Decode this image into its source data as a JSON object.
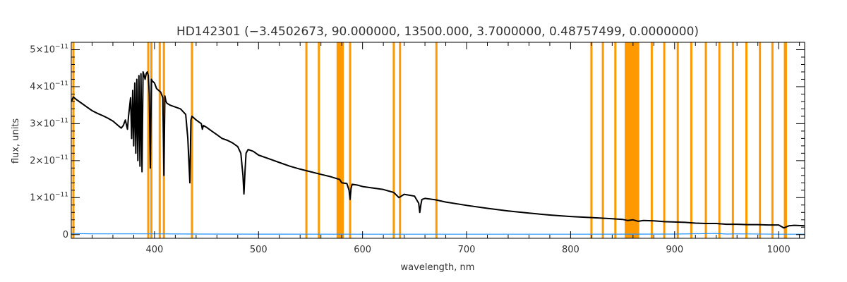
{
  "chart_data": {
    "type": "line",
    "title": "HD142301   (−3.4502673, 90.000000, 13500.000, 3.7000000, 0.48757499, 0.0000000)",
    "xlabel": "wavelength, nm",
    "ylabel": "flux, units",
    "xlim": [
      320,
      1025
    ],
    "ylim": [
      -1e-12,
      5.2e-11
    ],
    "x_ticks": [
      400,
      500,
      600,
      700,
      800,
      900,
      1000
    ],
    "y_ticks": [
      {
        "value": 0,
        "mantissa": "0",
        "exp": ""
      },
      {
        "value": 1e-11,
        "mantissa": "1×10",
        "exp": "−11"
      },
      {
        "value": 2e-11,
        "mantissa": "2×10",
        "exp": "−11"
      },
      {
        "value": 3e-11,
        "mantissa": "3×10",
        "exp": "−11"
      },
      {
        "value": 4e-11,
        "mantissa": "4×10",
        "exp": "−11"
      },
      {
        "value": 5e-11,
        "mantissa": "5×10",
        "exp": "−11"
      }
    ],
    "grid": false,
    "colors": {
      "flux": "#000000",
      "error": "#1e90ff",
      "band": "#ff9900"
    },
    "series": [
      {
        "label": "flux",
        "x": [
          320,
          322,
          325,
          330,
          335,
          340,
          345,
          350,
          355,
          360,
          365,
          368,
          370,
          372,
          374,
          375,
          377,
          378,
          379,
          380,
          381,
          382,
          383,
          384,
          385,
          386,
          387,
          388,
          389,
          390,
          391,
          392,
          393,
          394,
          395,
          396,
          397,
          398,
          400,
          402,
          404,
          406,
          408,
          409,
          410,
          411,
          412,
          415,
          420,
          425,
          430,
          432,
          434,
          435,
          436,
          438,
          440,
          445,
          446,
          447,
          450,
          455,
          460,
          465,
          470,
          475,
          480,
          483,
          485,
          486,
          487,
          488,
          490,
          495,
          500,
          510,
          520,
          530,
          540,
          550,
          560,
          570,
          578,
          580,
          585,
          587,
          588,
          589,
          590,
          595,
          600,
          620,
          630,
          635,
          640,
          650,
          654,
          655,
          656,
          657,
          660,
          670,
          680,
          700,
          720,
          740,
          760,
          780,
          800,
          820,
          840,
          850,
          855,
          860,
          865,
          870,
          880,
          890,
          900,
          910,
          920,
          930,
          940,
          950,
          960,
          970,
          980,
          990,
          1000,
          1005,
          1010,
          1015,
          1025
        ],
        "y": [
          3.6e-11,
          3.72e-11,
          3.65e-11,
          3.55e-11,
          3.45e-11,
          3.35e-11,
          3.28e-11,
          3.22e-11,
          3.15e-11,
          3.07e-11,
          2.95e-11,
          2.88e-11,
          2.95e-11,
          3.1e-11,
          2.85e-11,
          3.2e-11,
          3.7e-11,
          2.6e-11,
          3.9e-11,
          2.4e-11,
          4.1e-11,
          2.2e-11,
          4.2e-11,
          2e-11,
          4.3e-11,
          1.85e-11,
          4.35e-11,
          1.7e-11,
          4.4e-11,
          4.3e-11,
          4.2e-11,
          4.35e-11,
          4.4e-11,
          4.3e-11,
          3.8e-11,
          1.8e-11,
          4.2e-11,
          4.15e-11,
          4.1e-11,
          3.95e-11,
          3.9e-11,
          3.85e-11,
          3.7e-11,
          1.6e-11,
          3.75e-11,
          3.6e-11,
          3.55e-11,
          3.5e-11,
          3.45e-11,
          3.4e-11,
          3.25e-11,
          2.6e-11,
          1.4e-11,
          3.1e-11,
          3.2e-11,
          3.15e-11,
          3.1e-11,
          3e-11,
          2.85e-11,
          2.95e-11,
          2.9e-11,
          2.8e-11,
          2.7e-11,
          2.6e-11,
          2.55e-11,
          2.48e-11,
          2.38e-11,
          2.2e-11,
          1.6e-11,
          1.1e-11,
          1.7e-11,
          2.2e-11,
          2.3e-11,
          2.25e-11,
          2.15e-11,
          2.05e-11,
          1.95e-11,
          1.85e-11,
          1.77e-11,
          1.7e-11,
          1.63e-11,
          1.56e-11,
          1.49e-11,
          1.4e-11,
          1.38e-11,
          1.2e-11,
          9.5e-12,
          1.25e-11,
          1.36e-11,
          1.34e-11,
          1.3e-11,
          1.22e-11,
          1.14e-11,
          1e-11,
          1.09e-11,
          1.04e-11,
          8.5e-12,
          6e-12,
          8e-12,
          9.5e-12,
          9.8e-12,
          9.4e-12,
          8.8e-12,
          7.9e-12,
          7.1e-12,
          6.4e-12,
          5.8e-12,
          5.3e-12,
          4.9e-12,
          4.6e-12,
          4.3e-12,
          4.1e-12,
          3.8e-12,
          4e-12,
          3.6e-12,
          3.8e-12,
          3.7e-12,
          3.5e-12,
          3.4e-12,
          3.3e-12,
          3.1e-12,
          3e-12,
          3e-12,
          2.8e-12,
          2.8e-12,
          2.7e-12,
          2.7e-12,
          2.6e-12,
          2.6e-12,
          1.8e-12,
          2.4e-12,
          2.5e-12,
          2.4e-12
        ]
      },
      {
        "label": "error",
        "x": [
          320,
          340,
          360,
          380,
          400,
          450,
          500,
          600,
          700,
          800,
          900,
          940,
          950,
          960,
          1000,
          1025
        ],
        "y": [
          3e-13,
          2e-13,
          2e-13,
          2e-13,
          2e-13,
          1.5e-13,
          1.2e-13,
          1e-13,
          1e-13,
          1e-13,
          1.5e-13,
          3e-13,
          1.5e-13,
          2e-13,
          1e-13,
          1e-13
        ]
      }
    ],
    "bands": [
      [
        321,
        322
      ],
      [
        393,
        394
      ],
      [
        396,
        397
      ],
      [
        404,
        405
      ],
      [
        408,
        409
      ],
      [
        435,
        436
      ],
      [
        545,
        546
      ],
      [
        557,
        558
      ],
      [
        575,
        582
      ],
      [
        587,
        589
      ],
      [
        629,
        630
      ],
      [
        635,
        636
      ],
      [
        670,
        671
      ],
      [
        819,
        820
      ],
      [
        830,
        831
      ],
      [
        842,
        843
      ],
      [
        852,
        866
      ],
      [
        877,
        879
      ],
      [
        889,
        891
      ],
      [
        902,
        904
      ],
      [
        915,
        917
      ],
      [
        929,
        931
      ],
      [
        942,
        944
      ],
      [
        955,
        957
      ],
      [
        968,
        970
      ],
      [
        981,
        983
      ],
      [
        993,
        994
      ],
      [
        1005,
        1008
      ]
    ]
  }
}
